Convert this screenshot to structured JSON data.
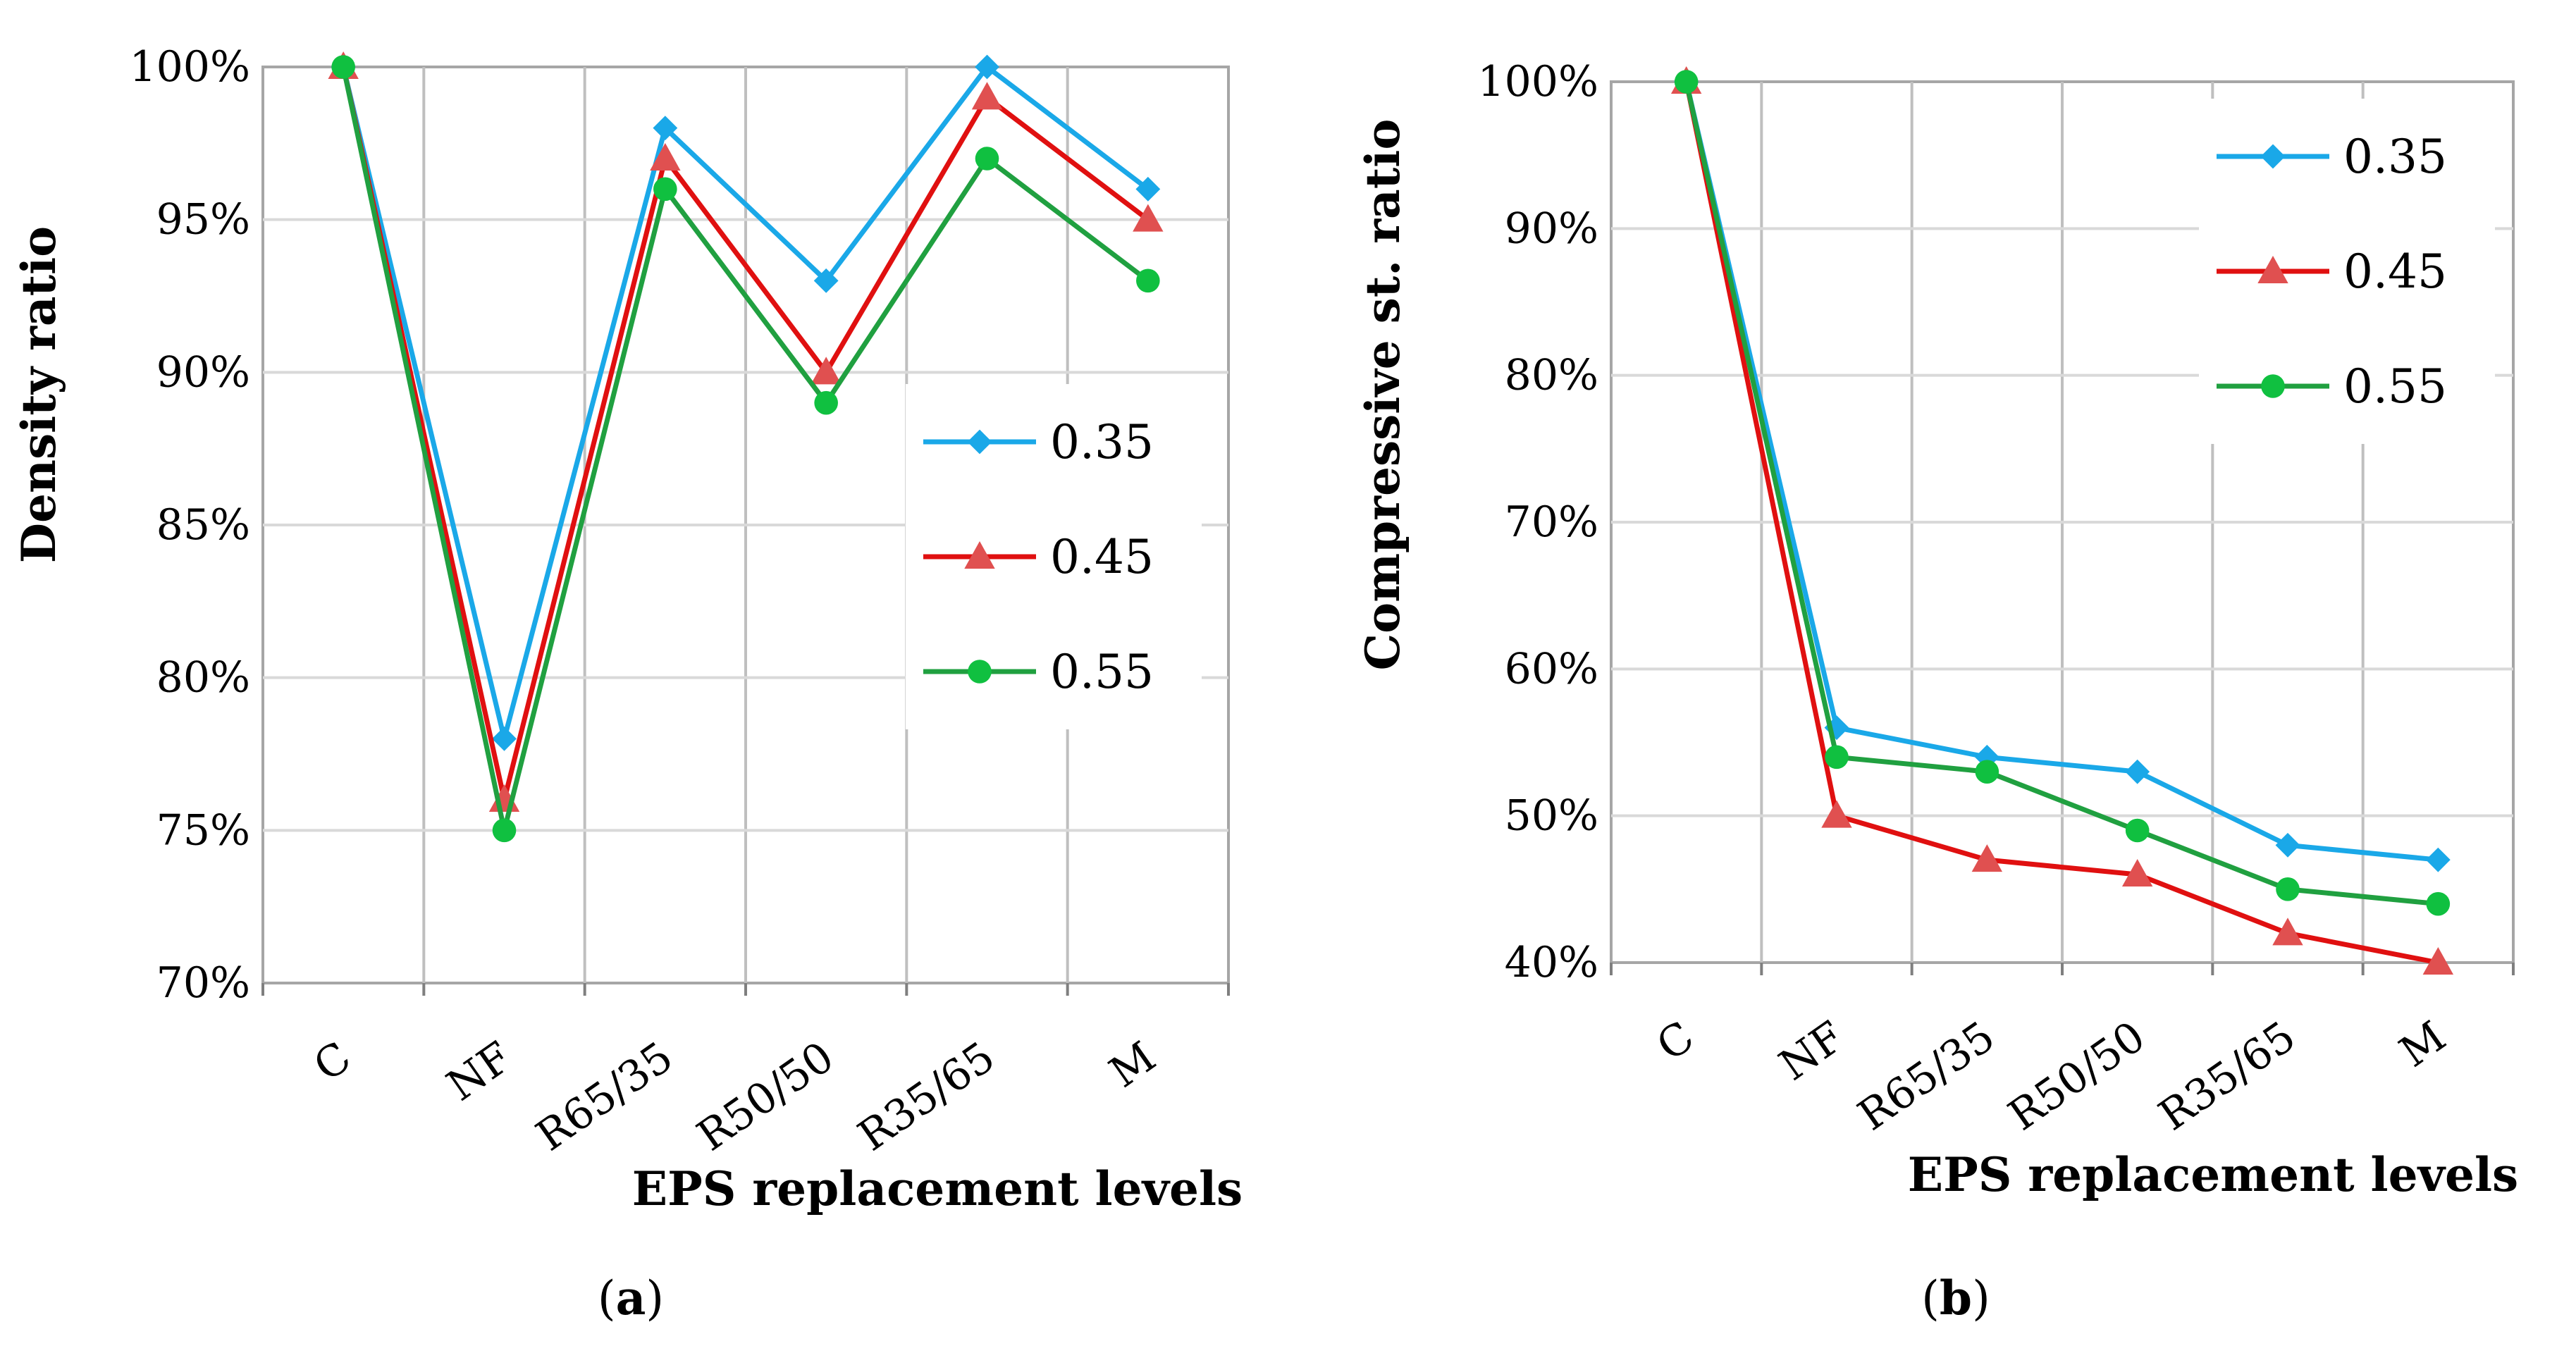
{
  "chart_data": [
    {
      "type": "line",
      "panel_label": "(a)",
      "panel_letter": "a",
      "categories": [
        "C",
        "NF",
        "R65/35",
        "R50/50",
        "R35/65",
        "M"
      ],
      "ylabel": "Density ratio",
      "xlabel": "EPS replacement levels",
      "ylim": [
        70,
        100
      ],
      "yticks": [
        70,
        75,
        80,
        85,
        90,
        95,
        100
      ],
      "ytick_labels": [
        "70%",
        "75%",
        "80%",
        "85%",
        "90%",
        "95%",
        "100%"
      ],
      "grid": true,
      "legend_position": "right",
      "series": [
        {
          "name": "0.35",
          "marker": "diamond",
          "color": "#1aa8e8",
          "values": [
            100,
            78,
            98,
            93,
            100,
            96
          ]
        },
        {
          "name": "0.45",
          "marker": "triangle",
          "color": "#e01010",
          "marker_color": "#e05050",
          "values": [
            100,
            76,
            97,
            90,
            99,
            95
          ]
        },
        {
          "name": "0.55",
          "marker": "circle",
          "color": "#20a040",
          "marker_color": "#10c040",
          "values": [
            100,
            75,
            96,
            89,
            97,
            93
          ]
        }
      ]
    },
    {
      "type": "line",
      "panel_label": "(b)",
      "panel_letter": "b",
      "categories": [
        "C",
        "NF",
        "R65/35",
        "R50/50",
        "R35/65",
        "M"
      ],
      "ylabel": "Compressive st. ratio",
      "xlabel": "EPS replacement levels",
      "ylim": [
        40,
        100
      ],
      "yticks": [
        40,
        50,
        60,
        70,
        80,
        90,
        100
      ],
      "ytick_labels": [
        "40%",
        "50%",
        "60%",
        "70%",
        "80%",
        "90%",
        "100%"
      ],
      "grid": true,
      "legend_position": "top-right",
      "series": [
        {
          "name": "0.35",
          "marker": "diamond",
          "color": "#1aa8e8",
          "values": [
            100,
            56,
            54,
            53,
            48,
            47
          ]
        },
        {
          "name": "0.45",
          "marker": "triangle",
          "color": "#e01010",
          "marker_color": "#e05050",
          "values": [
            100,
            50,
            47,
            46,
            42,
            40
          ]
        },
        {
          "name": "0.55",
          "marker": "circle",
          "color": "#20a040",
          "marker_color": "#10c040",
          "values": [
            100,
            54,
            53,
            49,
            45,
            44
          ]
        }
      ]
    }
  ]
}
